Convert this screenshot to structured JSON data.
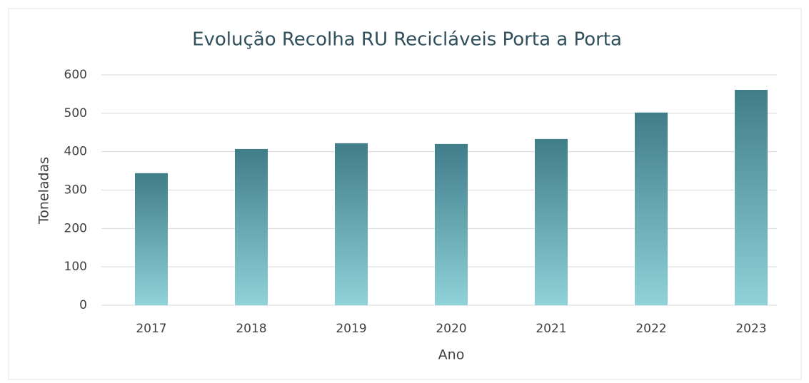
{
  "chart_data": {
    "type": "bar",
    "title": "Evolução Recolha RU Recicláveis Porta a Porta",
    "x_label": "Ano",
    "y_label": "Toneladas",
    "categories": [
      "2017",
      "2018",
      "2019",
      "2020",
      "2021",
      "2022",
      "2023"
    ],
    "values": [
      344,
      407,
      422,
      420,
      433,
      502,
      561
    ],
    "color": "#3f7d89",
    "ylim": [
      0,
      600
    ],
    "yticks": [
      0,
      100,
      200,
      300,
      400,
      500,
      600
    ],
    "grid": true
  }
}
